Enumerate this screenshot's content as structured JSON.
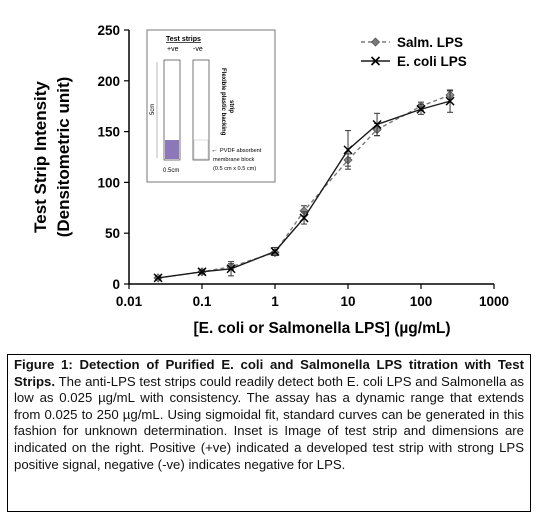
{
  "chart_data": {
    "type": "line",
    "xscale": "log",
    "xlim": [
      0.01,
      1000
    ],
    "ylim": [
      0,
      250
    ],
    "xticks": [
      "0.01",
      "0.1",
      "1",
      "10",
      "100",
      "1000"
    ],
    "yticks": [
      "0",
      "50",
      "100",
      "150",
      "200",
      "250"
    ],
    "xlabel": "[E. coli or Salmonella LPS] (µg/mL)",
    "ylabel_line1": "Test Strip Intensity",
    "ylabel_line2": "(Densitometric unit)",
    "grid": false,
    "legend_position": "top-right",
    "x": [
      0.025,
      0.1,
      0.25,
      1,
      2.5,
      10,
      25,
      100,
      250
    ],
    "series": [
      {
        "name": "Salm. LPS",
        "style": "dashed",
        "marker": "diamond",
        "values": [
          6,
          12,
          17,
          31,
          72,
          122,
          152,
          175,
          186
        ],
        "errors": [
          1,
          2,
          3,
          3,
          5,
          6,
          6,
          4,
          4
        ]
      },
      {
        "name": "E. coli LPS",
        "style": "solid",
        "marker": "x",
        "values": [
          6,
          12,
          15,
          32,
          65,
          132,
          157,
          172,
          180
        ],
        "errors": [
          1,
          2,
          7,
          4,
          6,
          19,
          11,
          5,
          11
        ]
      }
    ]
  },
  "inset": {
    "title": "Test strips",
    "pos_label": "+ve",
    "neg_label": "-ve",
    "length_label": "5cm",
    "width_label": "0.5cm",
    "backing_line1": "Flexible plastic backing",
    "backing_line2": "strip",
    "pvdf_line1": "PVDF absorbent",
    "pvdf_line2": "membrane block",
    "pvdf_line3": "(0.5 cm x 0.5 cm)",
    "arrow": "←"
  },
  "caption": {
    "bold_text": "Figure 1: Detection of Purified E. coli and Salmonella LPS titration with Test Strips.",
    "body_text": " The anti-LPS test strips could readily detect both E. coli LPS and Salmonella as low as 0.025 µg/mL with consistency. The assay has a dynamic range that extends from 0.025 to 250 µg/mL. Using sigmoidal fit, standard curves can be generated in this fashion for unknown determination. Inset is Image of test strip and dimensions are indicated on the right. Positive (+ve) indicated a developed test strip with strong LPS positive signal, negative (-ve) indicates negative for LPS."
  },
  "colors": {
    "axis": "#000000",
    "salm_line": "#7a7a7a",
    "ecoli_line": "#1a1a1a",
    "strip_positive": "#8c78b8"
  }
}
